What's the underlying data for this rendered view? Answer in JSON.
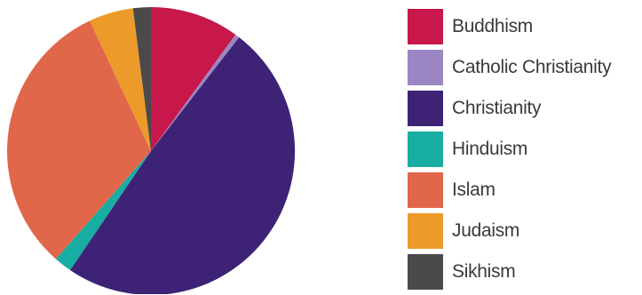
{
  "chart_data": {
    "type": "pie",
    "title": "",
    "legend_position": "right",
    "series": [
      {
        "name": "Buddhism",
        "value": 10.0,
        "color": "#c8174a"
      },
      {
        "name": "Catholic Christianity",
        "value": 0.5,
        "color": "#9b86c4"
      },
      {
        "name": "Christianity",
        "value": 49.0,
        "color": "#3e2276"
      },
      {
        "name": "Hinduism",
        "value": 2.0,
        "color": "#17ada2"
      },
      {
        "name": "Islam",
        "value": 31.5,
        "color": "#e0674a"
      },
      {
        "name": "Judaism",
        "value": 5.0,
        "color": "#ec9b2b"
      },
      {
        "name": "Sikhism",
        "value": 2.0,
        "color": "#4a4a4a"
      }
    ]
  }
}
